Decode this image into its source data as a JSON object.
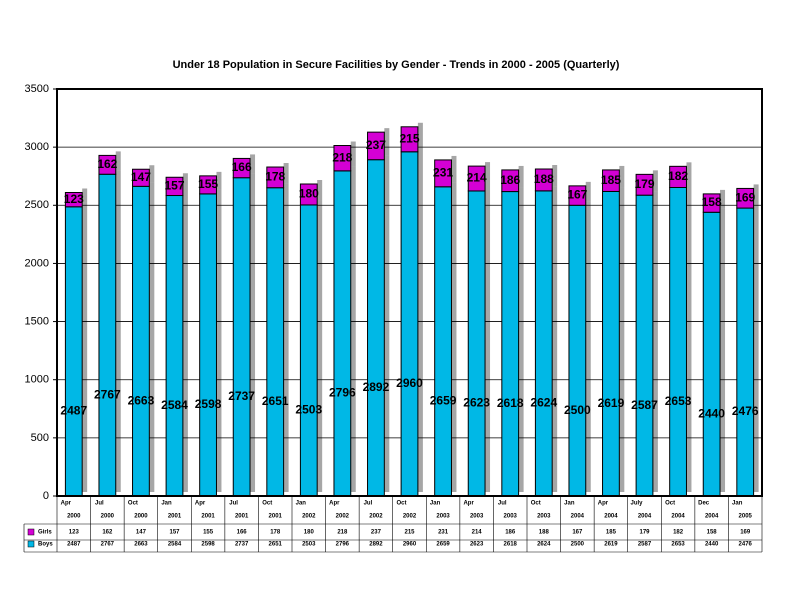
{
  "chart_data": {
    "type": "stacked-bar",
    "title": "Under 18 Population in Secure Facilities by Gender - Trends in 2000 - 2005 (Quarterly)",
    "categories": [
      [
        "Apr",
        "2000"
      ],
      [
        "Jul",
        "2000"
      ],
      [
        "Oct",
        "2000"
      ],
      [
        "Jan",
        "2001"
      ],
      [
        "Apr",
        "2001"
      ],
      [
        "Jul",
        "2001"
      ],
      [
        "Oct",
        "2001"
      ],
      [
        "Jan",
        "2002"
      ],
      [
        "Apr",
        "2002"
      ],
      [
        "Jul",
        "2002"
      ],
      [
        "Oct",
        "2002"
      ],
      [
        "Jan",
        "2003"
      ],
      [
        "Apr",
        "2003"
      ],
      [
        "Jul",
        "2003"
      ],
      [
        "Oct",
        "2003"
      ],
      [
        "Jan",
        "2004"
      ],
      [
        "Apr",
        "2004"
      ],
      [
        "July",
        "2004"
      ],
      [
        "Oct",
        "2004"
      ],
      [
        "Dec",
        "2004"
      ],
      [
        "Jan",
        "2005"
      ]
    ],
    "series": [
      {
        "name": "Boys",
        "color": "#00b8e6",
        "values": [
          2487,
          2767,
          2663,
          2584,
          2598,
          2737,
          2651,
          2503,
          2796,
          2892,
          2960,
          2659,
          2623,
          2618,
          2624,
          2500,
          2619,
          2587,
          2653,
          2440,
          2476
        ]
      },
      {
        "name": "Girls",
        "color": "#d400d4",
        "values": [
          123,
          162,
          147,
          157,
          155,
          166,
          178,
          180,
          218,
          237,
          215,
          231,
          214,
          186,
          188,
          167,
          185,
          179,
          182,
          158,
          169
        ]
      }
    ],
    "ylim": [
      0,
      3500
    ],
    "yticks": [
      0,
      500,
      1000,
      1500,
      2000,
      2500,
      3000,
      3500
    ],
    "grid": true
  }
}
